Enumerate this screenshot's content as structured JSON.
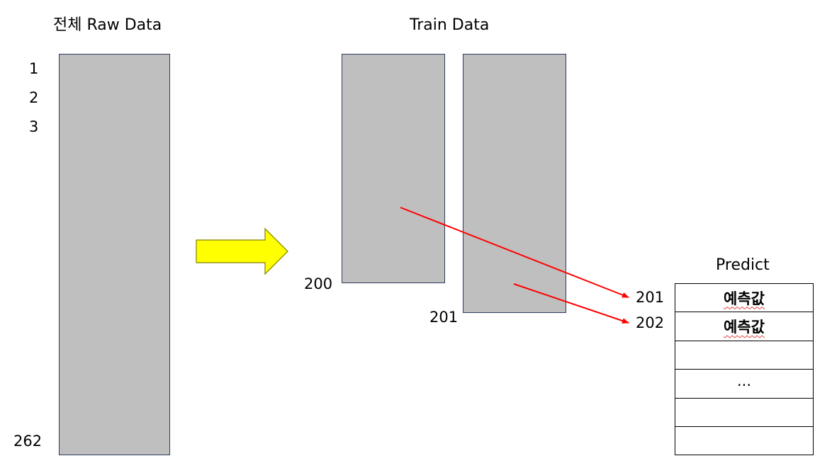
{
  "raw": {
    "title": "전체 Raw Data",
    "row_labels": [
      "1",
      "2",
      "3",
      "262"
    ]
  },
  "train": {
    "title": "Train Data",
    "end_label_1": "200",
    "end_label_2": "201"
  },
  "predict": {
    "title": "Predict",
    "row_labels": [
      "201",
      "202"
    ],
    "cells": [
      "예측값",
      "예측값",
      "",
      "...",
      "",
      ""
    ]
  },
  "colors": {
    "box_fill": "#bfbfbf",
    "box_border": "#2f3b5c",
    "arrow_fill": "#ffff00",
    "arrow_stroke": "#808000",
    "line_color": "#ff0000"
  }
}
